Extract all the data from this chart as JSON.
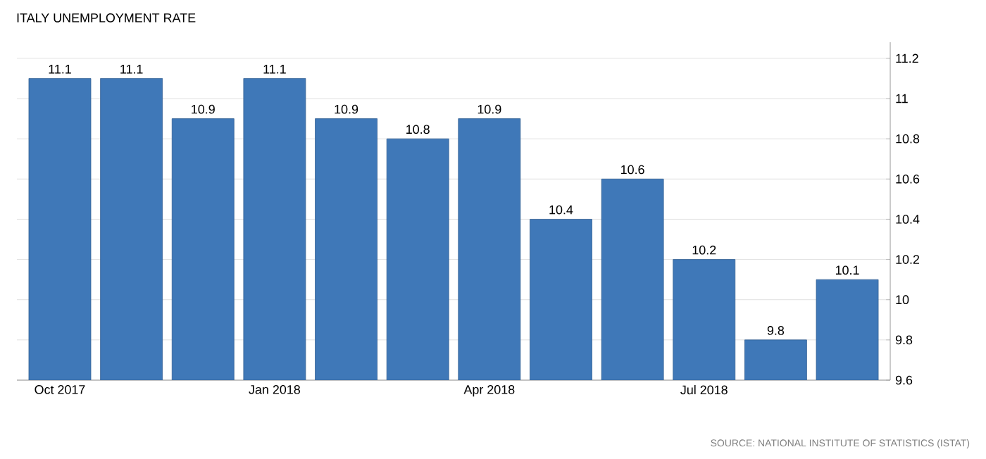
{
  "chart_data": {
    "type": "bar",
    "title": "ITALY UNEMPLOYMENT RATE",
    "categories": [
      "Oct 2017",
      null,
      null,
      "Jan 2018",
      null,
      null,
      "Apr 2018",
      null,
      null,
      "Jul 2018",
      null,
      null
    ],
    "values": [
      11.1,
      11.1,
      10.9,
      11.1,
      10.9,
      10.8,
      10.9,
      10.4,
      10.6,
      10.2,
      9.8,
      10.1
    ],
    "color": "#3f78b8",
    "ylim": [
      9.6,
      11.2
    ],
    "yticks": [
      9.6,
      9.8,
      10,
      10.2,
      10.4,
      10.6,
      10.8,
      11,
      11.2
    ],
    "grid": "y",
    "data_labels": true,
    "annotations": [
      "SOURCE: NATIONAL INSTITUTE OF STATISTICS (ISTAT)"
    ]
  }
}
